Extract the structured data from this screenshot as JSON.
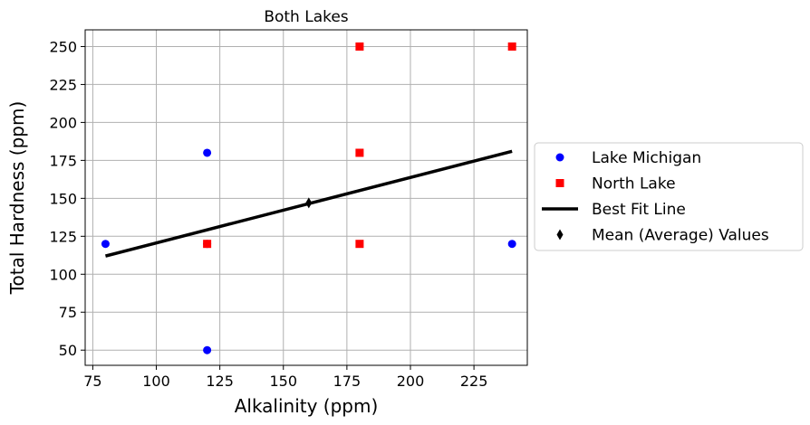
{
  "chart_data": {
    "type": "scatter",
    "title": "Both Lakes",
    "xlabel": "Alkalinity (ppm)",
    "ylabel": "Total Hardness (ppm)",
    "xlim": [
      72,
      246
    ],
    "ylim": [
      40,
      261
    ],
    "xticks": [
      75,
      100,
      125,
      150,
      175,
      200,
      225
    ],
    "yticks": [
      50,
      75,
      100,
      125,
      150,
      175,
      200,
      225,
      250
    ],
    "grid": true,
    "legend_position": "right, outside",
    "series": [
      {
        "name": "Lake Michigan",
        "kind": "scatter",
        "marker": "circle",
        "color": "#0000ff",
        "points": [
          [
            80,
            120
          ],
          [
            120,
            180
          ],
          [
            120,
            120
          ],
          [
            120,
            50
          ],
          [
            240,
            120
          ]
        ]
      },
      {
        "name": "North Lake",
        "kind": "scatter",
        "marker": "square",
        "color": "#ff0000",
        "points": [
          [
            120,
            120
          ],
          [
            180,
            250
          ],
          [
            180,
            180
          ],
          [
            180,
            120
          ],
          [
            240,
            250
          ]
        ]
      },
      {
        "name": "Best Fit Line",
        "kind": "line",
        "color": "#000000",
        "points": [
          [
            80,
            112
          ],
          [
            240,
            181
          ]
        ]
      },
      {
        "name": "Mean (Average) Values",
        "kind": "scatter",
        "marker": "thin_diamond",
        "color": "#000000",
        "points": [
          [
            160,
            147
          ]
        ]
      }
    ]
  }
}
